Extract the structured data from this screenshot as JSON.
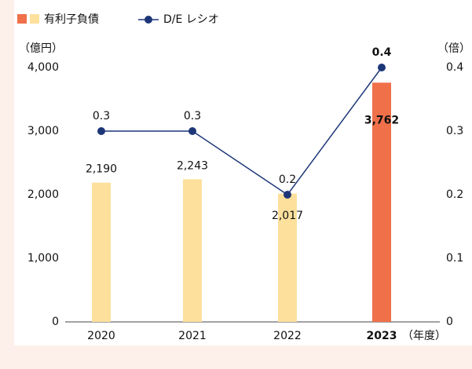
{
  "chart_data": {
    "type": "bar_line",
    "legend": true,
    "y_label": "（億円）",
    "y2_label": "（倍）",
    "x_label": "（年度）",
    "categories": [
      "2020",
      "2021",
      "2022",
      "2023"
    ],
    "emphasis": [
      false,
      false,
      false,
      true
    ],
    "series": [
      {
        "name": "有利子負債",
        "type": "bar",
        "colors": [
          "#fde09c",
          "#fde09c",
          "#fde09c",
          "#f0704a"
        ],
        "values": [
          2190,
          2243,
          2017,
          3762
        ],
        "value_labels": [
          "2,190",
          "2,243",
          "2,017",
          "3,762"
        ]
      },
      {
        "name": "D/E レシオ",
        "type": "line",
        "axis": "y2",
        "color": "#1c3678",
        "values": [
          0.3,
          0.3,
          0.2,
          0.4
        ]
      }
    ],
    "ylim": [
      0,
      4000
    ],
    "yticks": [
      0,
      {
        "value": 1000,
        "label": "1,000"
      },
      {
        "value": 2000,
        "label": "2,000"
      },
      {
        "value": 3000,
        "label": "3,000"
      },
      {
        "value": 4000,
        "label": "4,000"
      }
    ],
    "y2lim": [
      0,
      0.4
    ],
    "y2ticks": [
      0,
      0.1,
      0.2,
      0.3,
      0.4
    ]
  }
}
